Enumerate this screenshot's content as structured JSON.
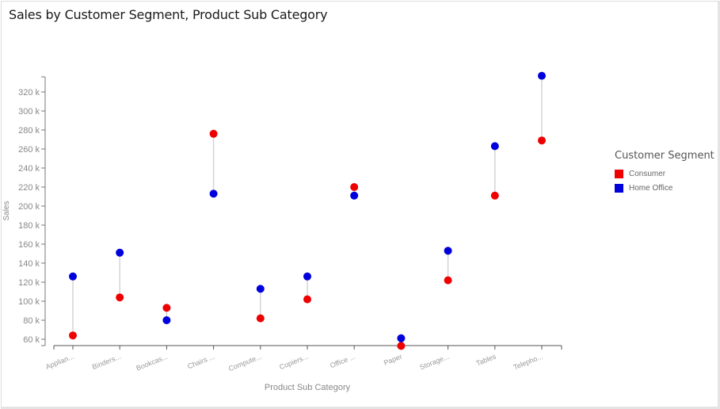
{
  "title": "Sales by Customer Segment, Product Sub Category",
  "legend": {
    "title": "Customer Segment",
    "items": [
      {
        "label": "Consumer",
        "color": "#ee0000"
      },
      {
        "label": "Home Office",
        "color": "#0000dd"
      }
    ]
  },
  "chart_data": {
    "type": "scatter",
    "subtype": "dumbbell",
    "title": "Sales by Customer Segment, Product Sub Category",
    "xlabel": "Product Sub Category",
    "ylabel": "Sales",
    "categories": [
      "Applian...",
      "Binders...",
      "Bookcas...",
      "Chairs ...",
      "Compute...",
      "Copiers...",
      "Office ...",
      "Paper",
      "Storage...",
      "Tables",
      "Telepho..."
    ],
    "series": [
      {
        "name": "Consumer",
        "color": "#ee0000",
        "values": [
          64000,
          104000,
          93000,
          276000,
          82000,
          102000,
          220000,
          53000,
          122000,
          211000,
          269000
        ]
      },
      {
        "name": "Home Office",
        "color": "#0000dd",
        "values": [
          126000,
          151000,
          80000,
          213000,
          113000,
          126000,
          211000,
          61000,
          153000,
          263000,
          337000
        ]
      }
    ],
    "yticks": [
      "60 k",
      "80 k",
      "100 k",
      "120 k",
      "140 k",
      "160 k",
      "180 k",
      "200 k",
      "220 k",
      "240 k",
      "260 k",
      "280 k",
      "300 k",
      "320 k"
    ],
    "ylim": [
      52000,
      343000
    ],
    "grid": false,
    "legend_position": "right"
  }
}
